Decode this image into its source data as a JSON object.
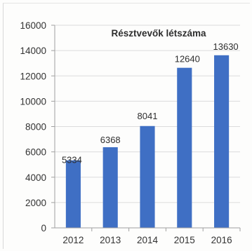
{
  "chart_data": {
    "type": "bar",
    "title": "Résztvevők létszáma",
    "xlabel": "",
    "ylabel": "",
    "categories": [
      "2012",
      "2013",
      "2014",
      "2015",
      "2016"
    ],
    "values": [
      5334,
      6368,
      8041,
      12640,
      13630
    ],
    "data_labels": [
      "5334",
      "6368",
      "8041",
      "12640",
      "13630"
    ],
    "ylim": [
      0,
      16000
    ],
    "yticks": [
      0,
      2000,
      4000,
      6000,
      8000,
      10000,
      12000,
      14000,
      16000
    ],
    "ytick_labels": [
      "0",
      "2000",
      "4000",
      "6000",
      "8000",
      "10000",
      "12000",
      "14000",
      "16000"
    ],
    "grid": true,
    "legend": "none",
    "colors": {
      "bar": "#3f6fc4",
      "grid": "#dcdcdc",
      "axis": "#a0a0a0"
    }
  }
}
